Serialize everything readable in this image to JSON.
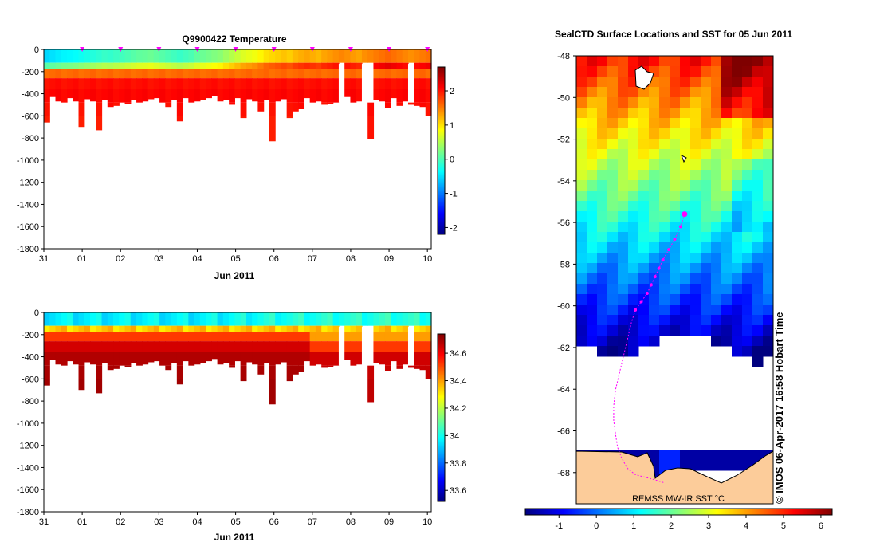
{
  "chart_data": [
    {
      "type": "heatmap",
      "title": "Q9900422  Temperature",
      "xlabel": "Jun 2011",
      "ylabel": "",
      "x_ticks": [
        "31",
        "01",
        "02",
        "03",
        "04",
        "05",
        "06",
        "07",
        "08",
        "09",
        "10"
      ],
      "y_ticks": [
        0,
        -200,
        -400,
        -600,
        -800,
        -1000,
        -1200,
        -1400,
        -1600,
        -1800
      ],
      "ylim": [
        -1800,
        0
      ],
      "xlim_days": [
        0,
        10.1
      ],
      "colorbar": {
        "ticks": [
          "-2",
          "-1",
          "0",
          "1",
          "2"
        ],
        "range": [
          -2.2,
          2.7
        ]
      },
      "profile_depth_max": [
        660,
        430,
        470,
        480,
        440,
        470,
        700,
        450,
        470,
        730,
        460,
        520,
        510,
        480,
        490,
        460,
        480,
        470,
        450,
        440,
        480,
        520,
        460,
        650,
        440,
        480,
        470,
        460,
        440,
        420,
        470,
        460,
        500,
        440,
        620,
        450,
        470,
        560,
        460,
        830,
        470,
        450,
        620,
        560,
        540,
        440,
        480,
        470,
        500,
        490,
        480,
        460,
        430,
        480,
        470,
        420,
        810,
        460,
        470,
        530,
        440,
        510,
        470,
        500,
        510,
        520,
        600
      ],
      "near_surface_temp": [
        -0.55,
        -0.5,
        -0.45,
        -0.4,
        -0.38,
        -0.35,
        -0.3,
        -0.25,
        -0.2,
        -0.15,
        -0.1,
        -0.12,
        -0.08,
        -0.05,
        0.0,
        0.05,
        0.1,
        0.12,
        0.15,
        0.1,
        0.05,
        0.0,
        -0.05,
        -0.1,
        -0.05,
        0.0,
        0.1,
        0.15,
        0.2,
        0.25,
        0.3,
        0.4,
        0.5,
        0.6,
        0.7,
        0.75,
        0.8,
        0.9,
        1.0,
        1.05,
        1.1,
        1.15,
        1.1,
        1.2,
        1.25,
        1.3,
        1.25,
        1.2,
        1.3,
        1.35,
        1.4,
        1.45,
        1.4,
        1.35,
        1.3,
        1.4,
        1.45,
        1.5,
        1.55,
        1.6,
        1.55,
        1.5,
        1.45,
        1.4,
        1.45,
        1.5,
        1.55
      ],
      "gaps_days": [
        7.75,
        8.45,
        9.6
      ],
      "profile_markers_days": [
        1,
        2,
        3,
        4,
        5,
        6,
        7,
        8,
        9,
        10
      ]
    },
    {
      "type": "heatmap",
      "title": "",
      "xlabel": "Jun 2011",
      "ylabel": "",
      "x_ticks": [
        "31",
        "01",
        "02",
        "03",
        "04",
        "05",
        "06",
        "07",
        "08",
        "09",
        "10"
      ],
      "y_ticks": [
        0,
        -200,
        -400,
        -600,
        -800,
        -1000,
        -1200,
        -1400,
        -1600,
        -1800
      ],
      "ylim": [
        -1800,
        0
      ],
      "colorbar": {
        "ticks": [
          "33.6",
          "33.8",
          "34",
          "34.2",
          "34.4",
          "34.6"
        ],
        "range": [
          33.52,
          34.74
        ]
      }
    },
    {
      "type": "heatmap",
      "title": "SealCTD Surface Locations and SST for 05 Jun 2011",
      "y_ticks": [
        "-48",
        "-50",
        "-52",
        "-54",
        "-56",
        "-58",
        "-60",
        "-62",
        "-64",
        "-66",
        "-68"
      ],
      "ylim": [
        -69.5,
        -48
      ],
      "colorbar_ticks": [
        "-1",
        "0",
        "1",
        "2",
        "3",
        "4",
        "5",
        "6"
      ],
      "colorbar_range": [
        -1.9,
        6.3
      ],
      "overlay_text": "REMSS MW-IR SST °C",
      "credit": "© IMOS 06-Apr-2017 16:58 Hobart Time",
      "track_lat": [
        -55.6,
        -56.2,
        -56.8,
        -57.3,
        -57.8,
        -58.2,
        -58.6,
        -59.0,
        -59.4,
        -59.8,
        -60.2,
        -60.8,
        -61.6,
        -62.4,
        -63.2,
        -64.0,
        -64.8,
        -65.5,
        -66.2,
        -66.8,
        -67.3,
        -67.8,
        -68.1,
        -68.3,
        -68.5
      ],
      "track_lon_rel": [
        0.55,
        0.53,
        0.5,
        0.47,
        0.44,
        0.42,
        0.4,
        0.38,
        0.36,
        0.33,
        0.3,
        0.28,
        0.26,
        0.24,
        0.22,
        0.2,
        0.19,
        0.19,
        0.2,
        0.21,
        0.23,
        0.26,
        0.3,
        0.38,
        0.45
      ]
    }
  ]
}
